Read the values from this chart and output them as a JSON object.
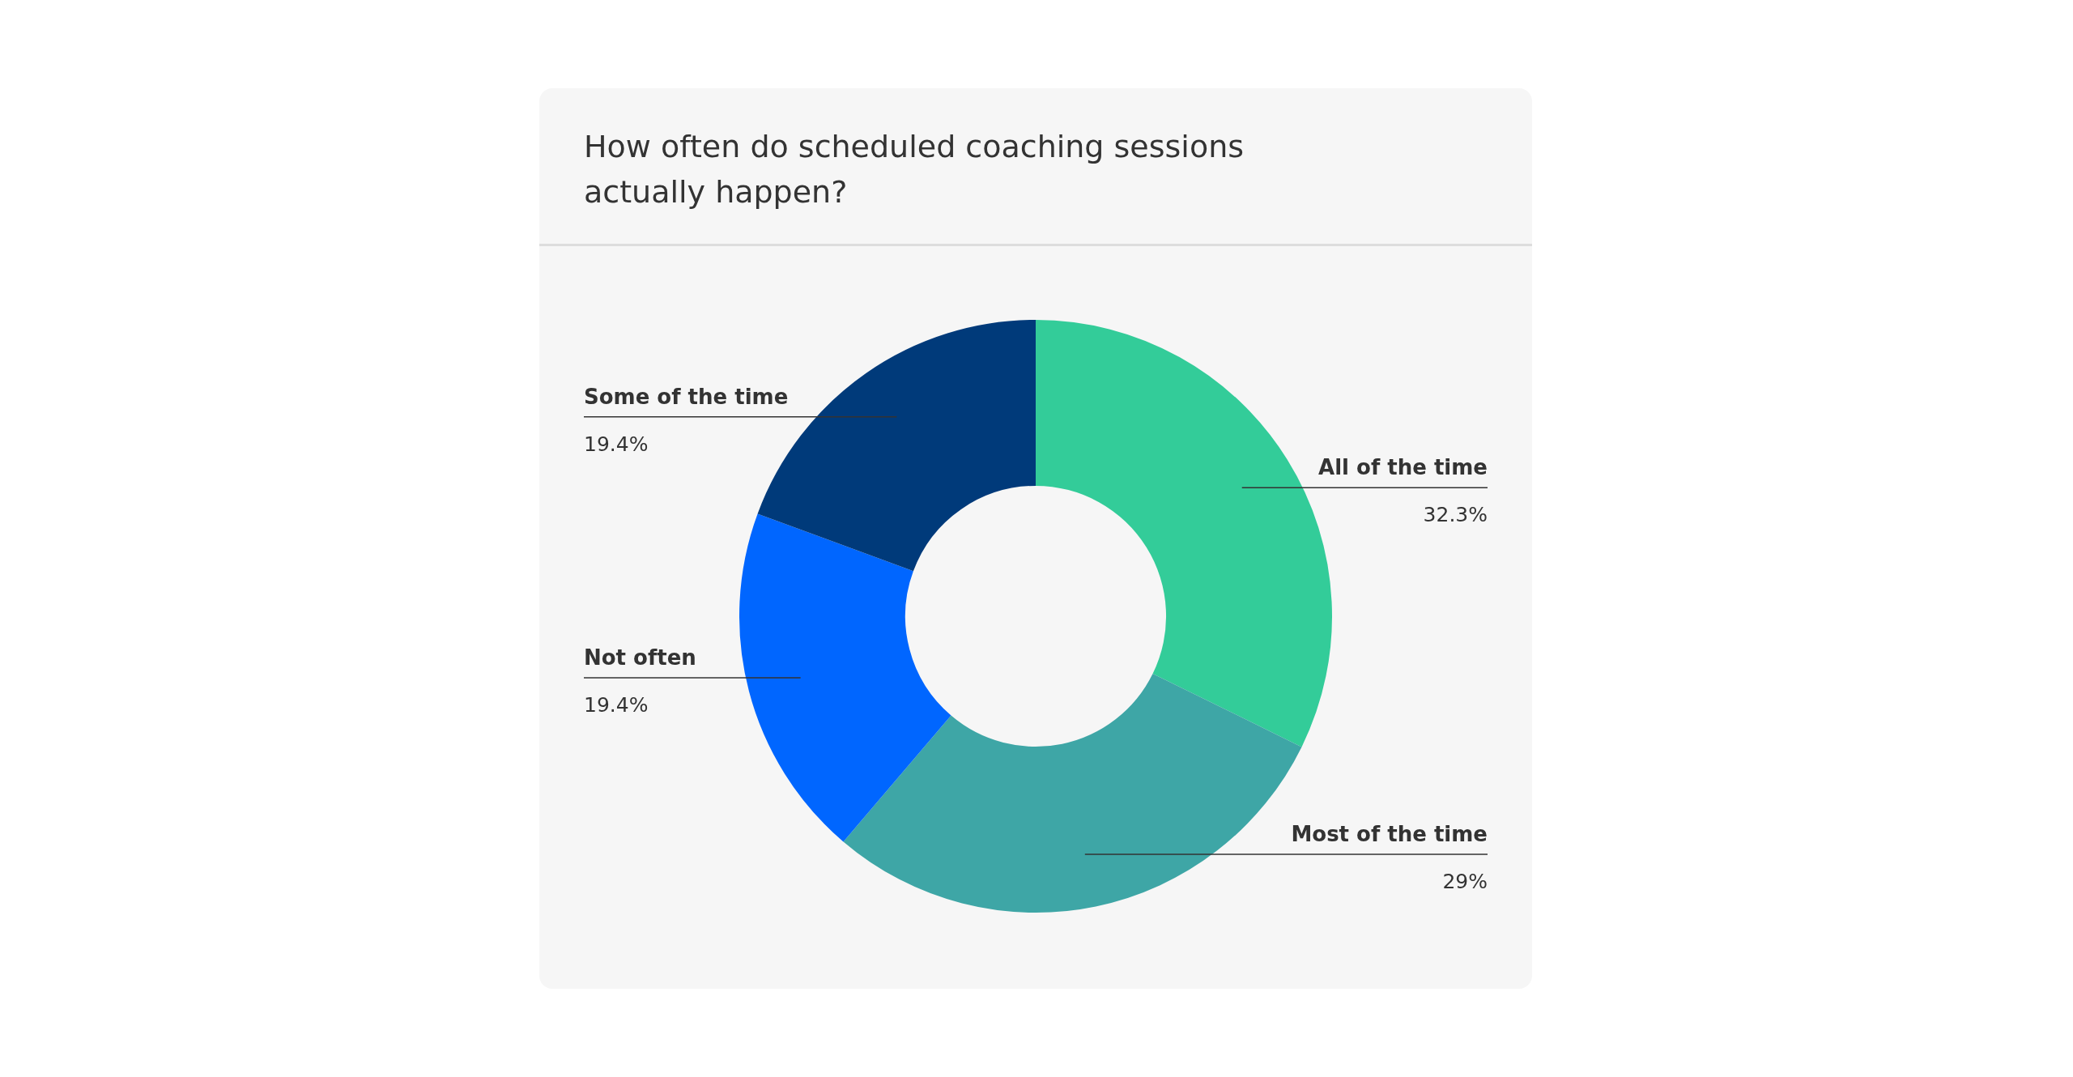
{
  "chart_data": {
    "type": "donut",
    "title": "How often do scheduled coaching sessions actually happen?",
    "categories": [
      "All of the time",
      "Most of the time",
      "Not often",
      "Some of the time"
    ],
    "values": [
      32.3,
      29,
      19.4,
      19.4
    ],
    "colors": [
      "#33cc99",
      "#3ea6a6",
      "#0066ff",
      "#003a7a"
    ],
    "value_labels": [
      "32.3%",
      "29%",
      "19.4%",
      "19.4%"
    ],
    "legend": false
  }
}
